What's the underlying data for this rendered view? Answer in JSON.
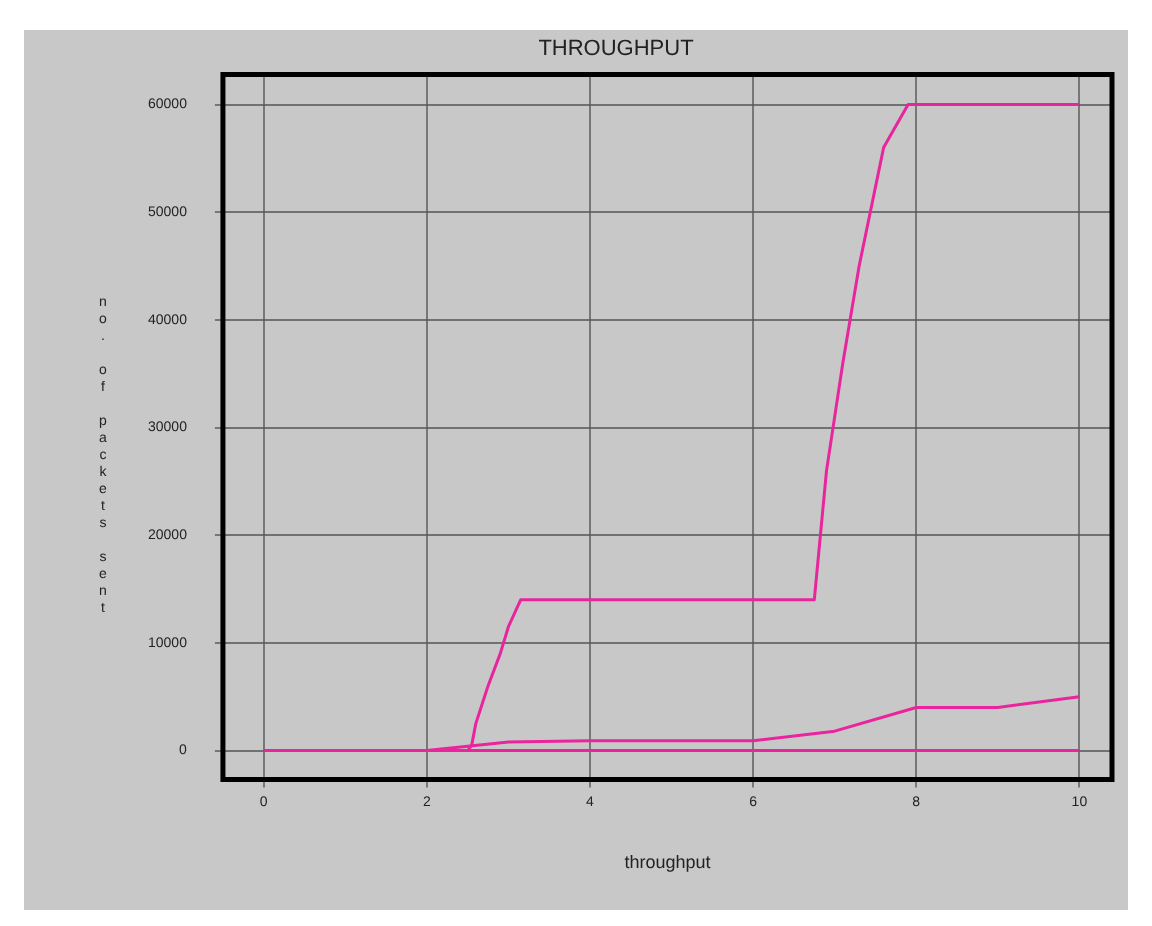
{
  "chart_data": {
    "type": "line",
    "title": "THROUGHPUT",
    "xlabel": "throughput",
    "ylabel": "no. of packets sent",
    "xlim": [
      -0.5,
      10.4
    ],
    "xticks": [
      0,
      2,
      4,
      6,
      8,
      10
    ],
    "ylim": [
      -2700,
      62800
    ],
    "yticks": [
      0,
      10000,
      20000,
      30000,
      40000,
      50000,
      60000
    ],
    "grid": true,
    "legend": false,
    "marker": "none",
    "line_style": "solid",
    "series": [
      {
        "color": "#e8259c",
        "x": [
          0,
          2.5,
          2.55,
          2.6,
          2.75,
          2.9,
          3.0,
          3.15,
          6.75,
          6.8,
          6.9,
          7.1,
          7.3,
          7.6,
          7.75,
          7.9,
          10
        ],
        "values": [
          0,
          0,
          500,
          2500,
          6000,
          9000,
          11500,
          14000,
          14000,
          18000,
          26000,
          36000,
          45000,
          56000,
          58000,
          60000,
          60000
        ]
      },
      {
        "color": "#e8259c",
        "x": [
          0,
          2,
          2.5,
          3,
          4,
          6,
          7,
          8,
          9,
          10
        ],
        "values": [
          0,
          0,
          400,
          800,
          900,
          900,
          1800,
          4000,
          4000,
          5000
        ]
      },
      {
        "color": "#e8259c",
        "x": [
          0,
          10
        ],
        "values": [
          0,
          0
        ]
      }
    ]
  }
}
